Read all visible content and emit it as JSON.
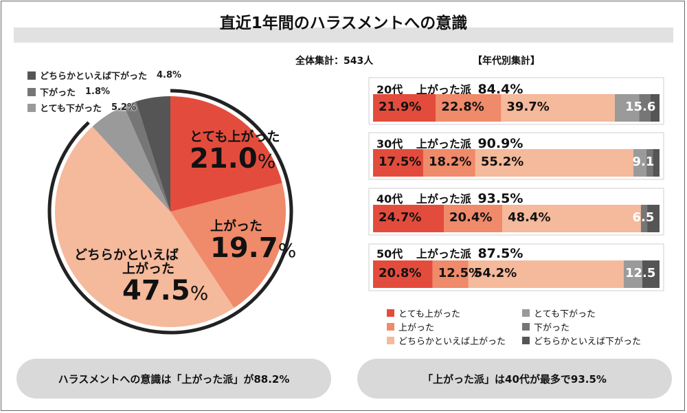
{
  "title": "直近1年間のハラスメントへの意識",
  "total_label": "全体集計：543人",
  "age_heading": "【年代別集計】",
  "colors": {
    "totemo_up": "#e34c3c",
    "up": "#ef8a6a",
    "dochira_up": "#f5b99b",
    "totemo_down": "#9a9a9a",
    "down": "#767676",
    "dochira_down": "#555555",
    "ring": "#222222"
  },
  "chart_data": [
    {
      "type": "pie",
      "title": "全体集計：543人",
      "slices": [
        {
          "label": "とても上がった",
          "value": 21.0,
          "color": "#e34c3c"
        },
        {
          "label": "上がった",
          "value": 19.7,
          "color": "#ef8a6a"
        },
        {
          "label": "どちらかといえば上がった",
          "value": 47.5,
          "color": "#f5b99b"
        },
        {
          "label": "とても下がった",
          "value": 5.2,
          "color": "#9a9a9a"
        },
        {
          "label": "下がった",
          "value": 1.8,
          "color": "#767676"
        },
        {
          "label": "どちらかといえば下がった",
          "value": 4.8,
          "color": "#555555"
        }
      ]
    },
    {
      "type": "bar",
      "orientation": "horizontal",
      "stacked": true,
      "title": "【年代別集計】",
      "categories": [
        "20代",
        "30代",
        "40代",
        "50代"
      ],
      "summary_label": "上がった派",
      "summary_values": [
        "84.4%",
        "90.9%",
        "93.5%",
        "87.5%"
      ],
      "series": [
        {
          "name": "とても上がった",
          "color": "#e34c3c",
          "values": [
            21.9,
            17.5,
            24.7,
            20.8
          ]
        },
        {
          "name": "上がった",
          "color": "#ef8a6a",
          "values": [
            22.8,
            18.2,
            20.4,
            12.5
          ]
        },
        {
          "name": "どちらかといえば上がった",
          "color": "#f5b99b",
          "values": [
            39.7,
            55.2,
            48.4,
            54.2
          ]
        },
        {
          "name": "とても下がった",
          "color": "#9a9a9a",
          "values": [
            8.5,
            4.5,
            0.0,
            6.5
          ]
        },
        {
          "name": "下がった",
          "color": "#767676",
          "values": [
            3.9,
            2.3,
            2.2,
            0.0
          ]
        },
        {
          "name": "どちらかといえば下がった",
          "color": "#555555",
          "values": [
            3.2,
            2.3,
            4.3,
            6.0
          ]
        }
      ],
      "segment_labels": [
        [
          "21.9%",
          "22.8%",
          "39.7%",
          "15.6"
        ],
        [
          "17.5%",
          "18.2%",
          "55.2%",
          "9.1"
        ],
        [
          "24.7%",
          "20.4%",
          "48.4%",
          "6.5"
        ],
        [
          "20.8%",
          "12.5%",
          "54.2%",
          "12.5"
        ]
      ]
    }
  ],
  "pie_legend": [
    {
      "label": "どちらかといえば下がった",
      "value": "4.8%",
      "color": "#555555"
    },
    {
      "label": "下がった",
      "value": "1.8%",
      "color": "#767676"
    },
    {
      "label": "とても下がった",
      "value": "5.2%",
      "color": "#9a9a9a"
    }
  ],
  "pie_labels": {
    "totemo_up": {
      "text": "とても上がった",
      "num": "21.0",
      "pct": "%"
    },
    "up": {
      "text": "上がった",
      "num": "19.7",
      "pct": "%"
    },
    "dochira_up": {
      "text1": "どちらかといえば",
      "text2": "上がった",
      "num": "47.5",
      "pct": "%"
    }
  },
  "bar_legend": [
    {
      "label": "とても上がった",
      "color": "#e34c3c"
    },
    {
      "label": "とても下がった",
      "color": "#9a9a9a"
    },
    {
      "label": "上がった",
      "color": "#ef8a6a"
    },
    {
      "label": "下がった",
      "color": "#767676"
    },
    {
      "label": "どちらかといえば上がった",
      "color": "#f5b99b"
    },
    {
      "label": "どちらかといえば下がった",
      "color": "#555555"
    }
  ],
  "summaries": {
    "left": "ハラスメントへの意識は「上がった派」が88.2%",
    "right": "「上がった派」は40代が最多で93.5%"
  }
}
